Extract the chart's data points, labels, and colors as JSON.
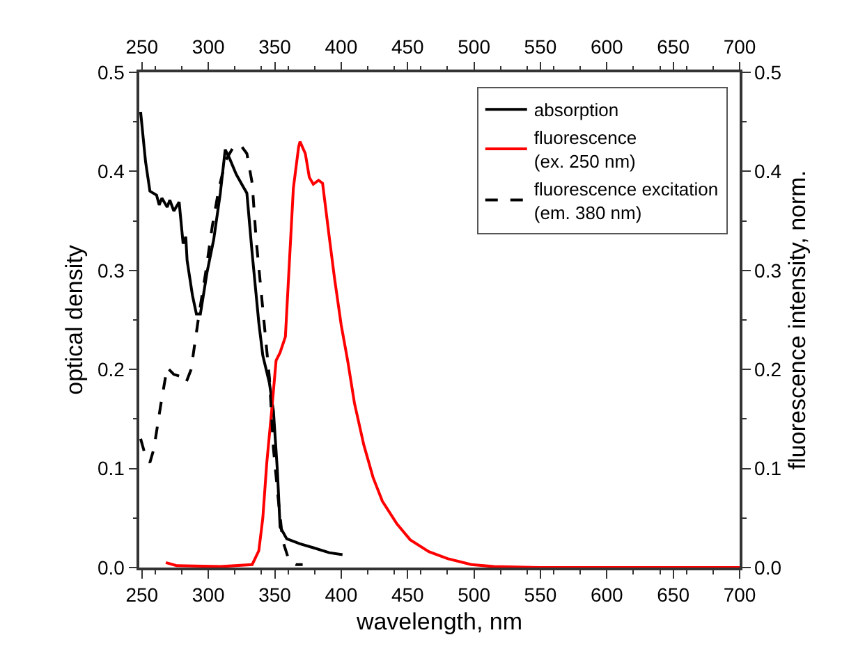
{
  "chart_data": {
    "type": "line",
    "xlabel": "wavelength, nm",
    "ylabel": "optical density",
    "y2label": "fluorescence intensity, norm.",
    "xlim": [
      248,
      700
    ],
    "xticks": [
      250,
      300,
      350,
      400,
      450,
      500,
      550,
      600,
      650,
      700
    ],
    "x2lim": [
      248,
      700
    ],
    "x2ticks": [
      250,
      300,
      350,
      400,
      450,
      500,
      550,
      600,
      650,
      700
    ],
    "ylim": [
      0,
      0.5
    ],
    "yticks": [
      {
        "value": 0,
        "label": "0.0"
      },
      0.1,
      0.2,
      0.3,
      0.4,
      0.5
    ],
    "y2lim": [
      0,
      0.5
    ],
    "y2ticks": [
      {
        "value": 0,
        "label": "0.0"
      },
      0.1,
      0.2,
      0.3,
      0.4,
      0.5
    ],
    "legend": "top right",
    "marker": "none",
    "series": [
      {
        "name": "absorption",
        "color": "#000000",
        "line_style": "solid",
        "x": [
          249,
          252.7,
          256,
          261,
          263,
          265,
          269,
          271,
          274,
          278,
          279,
          281,
          283,
          284,
          288,
          291,
          294,
          299,
          304,
          309,
          312.7,
          316,
          321,
          326,
          329,
          333,
          338,
          341,
          346,
          349,
          352,
          354,
          359,
          369,
          379,
          391,
          401
        ],
        "values": [
          0.46,
          0.41,
          0.38,
          0.376,
          0.366,
          0.373,
          0.364,
          0.371,
          0.36,
          0.369,
          0.355,
          0.327,
          0.334,
          0.31,
          0.275,
          0.256,
          0.256,
          0.298,
          0.331,
          0.378,
          0.422,
          0.413,
          0.397,
          0.385,
          0.378,
          0.317,
          0.247,
          0.214,
          0.186,
          0.158,
          0.097,
          0.041,
          0.029,
          0.024,
          0.02,
          0.015,
          0.013
        ]
      },
      {
        "name": "fluorescence\n(ex. 250 nm)",
        "color": "#ff0000",
        "line_style": "solid",
        "axis": "y2",
        "x": [
          268,
          276,
          309,
          333,
          338,
          341,
          344,
          348,
          351,
          354,
          358,
          361,
          364,
          368,
          369,
          373,
          376,
          379,
          383,
          386,
          391,
          395,
          400,
          405,
          410,
          417,
          424,
          431,
          442,
          452,
          466,
          480,
          498,
          515,
          550,
          600,
          650,
          700
        ],
        "values": [
          0.005,
          0.002,
          0.001,
          0.003,
          0.017,
          0.05,
          0.106,
          0.163,
          0.209,
          0.217,
          0.233,
          0.308,
          0.383,
          0.425,
          0.43,
          0.418,
          0.394,
          0.387,
          0.391,
          0.388,
          0.334,
          0.292,
          0.245,
          0.208,
          0.166,
          0.124,
          0.091,
          0.067,
          0.044,
          0.028,
          0.016,
          0.009,
          0.003,
          0.001,
          0,
          0,
          0,
          0
        ]
      },
      {
        "name": "fluorescence excitation\n(em. 380 nm)",
        "color": "#000000",
        "line_style": "dashed",
        "axis": "y2",
        "x": [
          249,
          253,
          256,
          259,
          264,
          269,
          274,
          279,
          283,
          287,
          293,
          298,
          303,
          308,
          313,
          319,
          324,
          329,
          333,
          336,
          341,
          346,
          349,
          353,
          356,
          361,
          366,
          371
        ],
        "values": [
          0.13,
          0.111,
          0.106,
          0.12,
          0.163,
          0.202,
          0.195,
          0.193,
          0.186,
          0.2,
          0.256,
          0.298,
          0.345,
          0.383,
          0.411,
          0.425,
          0.427,
          0.418,
          0.388,
          0.331,
          0.261,
          0.191,
          0.12,
          0.064,
          0.027,
          0.006,
          0.003,
          0.003
        ]
      }
    ]
  }
}
